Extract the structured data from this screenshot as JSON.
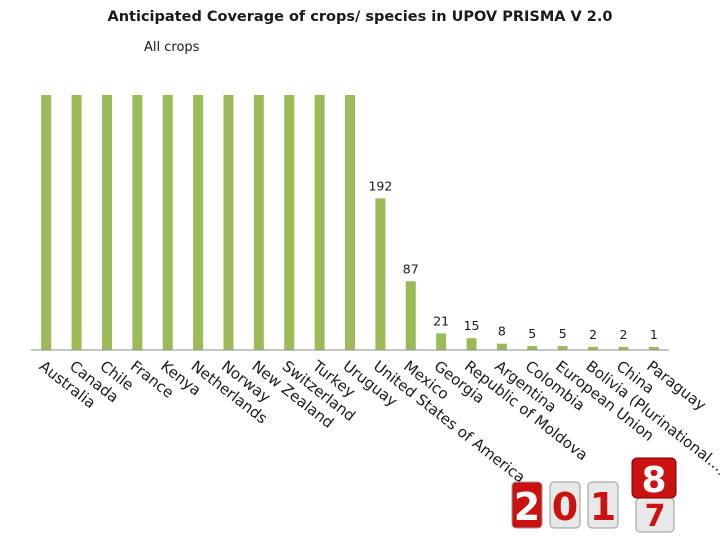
{
  "chart_data": {
    "type": "bar",
    "title": "Anticipated Coverage of crops/ species in UPOV PRISMA V 2.0",
    "subtitle": "All crops",
    "categories": [
      "Australia",
      "Canada",
      "Chile",
      "France",
      "Kenya",
      "Netherlands",
      "Norway",
      "New Zealand",
      "Switzerland",
      "Turkey",
      "Uruguay",
      "United States of America",
      "Mexico",
      "Georgia",
      "Republic of Moldova",
      "Argentina",
      "Colombia",
      "European Union",
      "Bolivia (Plurinational...)",
      "China",
      "Paraguay"
    ],
    "values": [
      null,
      null,
      null,
      null,
      null,
      null,
      null,
      null,
      null,
      null,
      null,
      192,
      87,
      21,
      15,
      8,
      5,
      5,
      2,
      2,
      1
    ],
    "value_labels": [
      "",
      "",
      "",
      "",
      "",
      "",
      "",
      "",
      "",
      "",
      "",
      "192",
      "87",
      "21",
      "15",
      "8",
      "5",
      "5",
      "2",
      "2",
      "1"
    ],
    "bar_color": "#9bbb59",
    "grid": false,
    "legend": "none",
    "xlabel": "",
    "ylabel": ""
  },
  "badge": {
    "year_digits": [
      "2",
      "0",
      "1",
      "7"
    ],
    "next_year_digit": "8",
    "digit_color": "#cc1111"
  }
}
